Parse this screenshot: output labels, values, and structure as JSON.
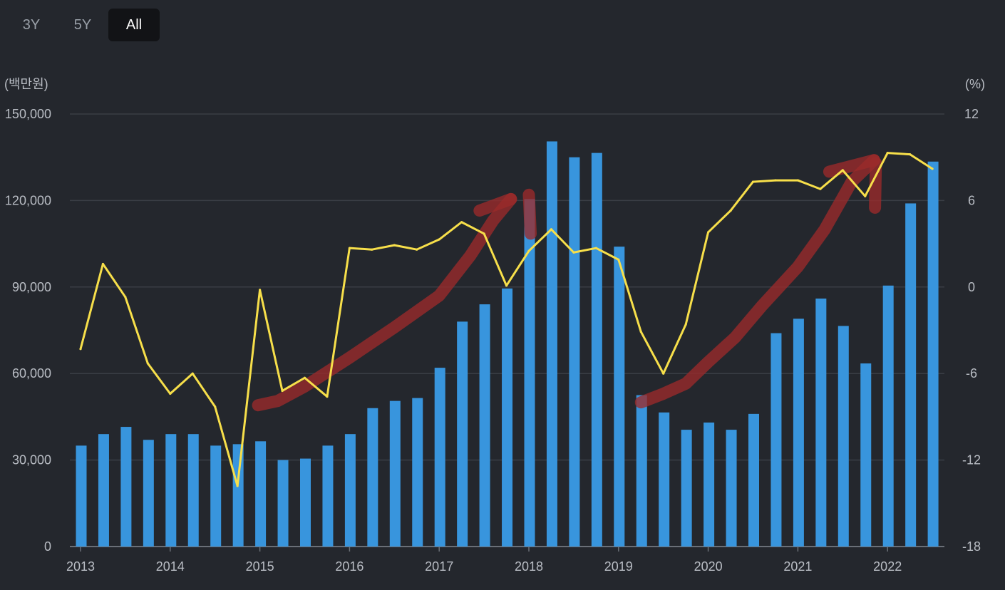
{
  "range_buttons": [
    {
      "label": "3Y",
      "active": false
    },
    {
      "label": "5Y",
      "active": false
    },
    {
      "label": "All",
      "active": true
    }
  ],
  "colors": {
    "background": "#24272d",
    "bar": "#3895dd",
    "line": "#f7df4a",
    "annotation": "#9b2a2a",
    "grid": "#3a3e45",
    "axis_text": "#b9bdc4"
  },
  "chart_data": {
    "type": "bar+line",
    "y_left_unit": "(백만원)",
    "y_right_unit": "(%)",
    "y_left_ticks": [
      "150,000",
      "120,000",
      "90,000",
      "60,000",
      "30,000",
      "0"
    ],
    "y_right_ticks": [
      "12",
      "6",
      "0",
      "-6",
      "-12",
      "-18"
    ],
    "y_left_range": [
      0,
      150000
    ],
    "y_right_range": [
      -18,
      12
    ],
    "x_ticks": [
      "2013",
      "2014",
      "2015",
      "2016",
      "2017",
      "2018",
      "2019",
      "2020",
      "2021",
      "2022"
    ],
    "x_range": [
      2013.0,
      2022.75
    ],
    "x": [
      2013.0,
      2013.25,
      2013.5,
      2013.75,
      2014.0,
      2014.25,
      2014.5,
      2014.75,
      2015.0,
      2015.25,
      2015.5,
      2015.75,
      2016.0,
      2016.25,
      2016.5,
      2016.75,
      2017.0,
      2017.25,
      2017.5,
      2017.75,
      2018.0,
      2018.25,
      2018.5,
      2018.75,
      2019.0,
      2019.25,
      2019.5,
      2019.75,
      2020.0,
      2020.25,
      2020.5,
      2020.75,
      2021.0,
      2021.25,
      2021.5,
      2021.75,
      2022.0,
      2022.25,
      2022.5
    ],
    "series": [
      {
        "name": "bars",
        "axis": "left",
        "type": "bar",
        "values": [
          35000,
          39000,
          41500,
          37000,
          39000,
          39000,
          35000,
          35500,
          36500,
          30000,
          30500,
          35000,
          39000,
          48000,
          50500,
          51500,
          62000,
          78000,
          84000,
          89500,
          120500,
          140500,
          135000,
          136500,
          104000,
          52500,
          46500,
          40500,
          43000,
          40500,
          46000,
          74000,
          79000,
          86000,
          76500,
          63500,
          90500,
          119000,
          133500
        ]
      },
      {
        "name": "line",
        "axis": "right",
        "type": "line",
        "values": [
          -4.3,
          1.6,
          -0.7,
          -5.3,
          -7.4,
          -6.0,
          -8.3,
          -13.8,
          -0.2,
          -7.2,
          -6.3,
          -7.6,
          2.7,
          2.6,
          2.9,
          2.6,
          3.3,
          4.5,
          3.7,
          0.1,
          2.5,
          4.0,
          2.4,
          2.7,
          1.9,
          -3.1,
          -6.0,
          -2.6,
          3.8,
          5.3,
          7.3,
          7.4,
          7.4,
          6.8,
          8.1,
          6.3,
          9.3,
          9.2,
          8.2
        ]
      }
    ]
  }
}
